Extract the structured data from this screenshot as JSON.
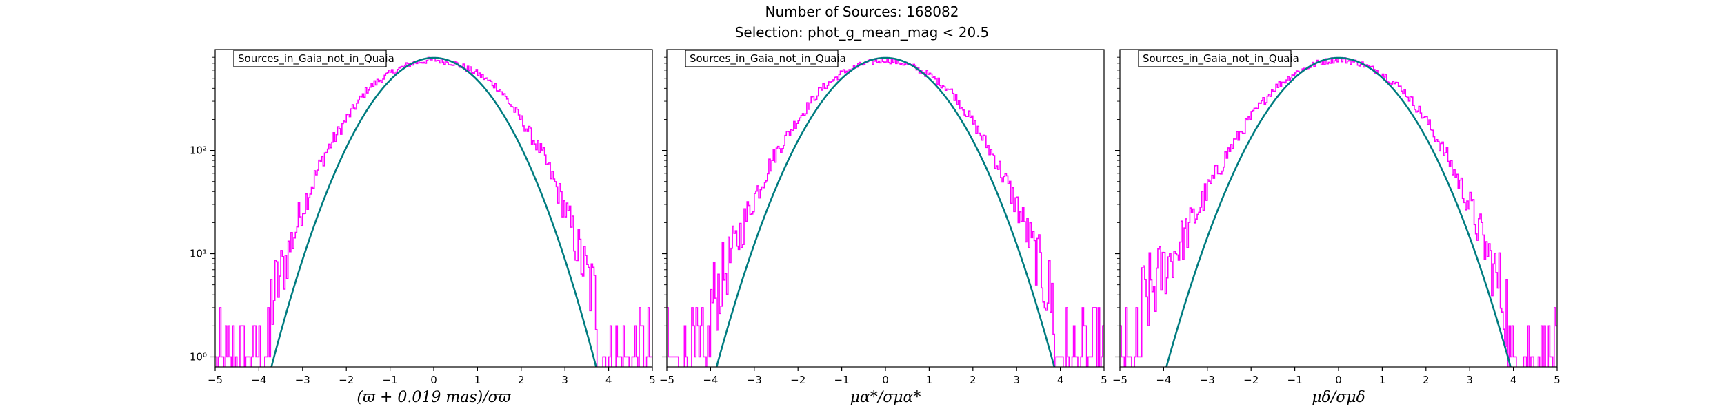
{
  "figure": {
    "title_line1": "Number of Sources: 168082",
    "title_line2": "Selection: phot_g_mean_mag < 20.5",
    "colors": {
      "histogram": "#ff00ff",
      "fit_curve": "#007c80"
    }
  },
  "chart_data": [
    {
      "type": "histogram",
      "legend": "Sources_in_Gaia_not_in_Quaia",
      "legend_position": "top-left",
      "xlabel": "(ϖ + 0.019 mas)/σϖ",
      "ylabel": "",
      "xlim": [
        -5,
        5
      ],
      "ylim": [
        0.8,
        950
      ],
      "yscale": "log",
      "xticks": [
        "−5",
        "−4",
        "−3",
        "−2",
        "−1",
        "0",
        "1",
        "2",
        "3",
        "4",
        "5"
      ],
      "yticks": [
        {
          "value": 1,
          "label": "10⁰"
        },
        {
          "value": 10,
          "label": "10¹"
        },
        {
          "value": 100,
          "label": "10²"
        }
      ],
      "series": [
        {
          "kind": "step",
          "x": [
            -5,
            -4.5,
            -4,
            -3.5,
            -3,
            -2.5,
            -2,
            -1.5,
            -1,
            -0.5,
            0,
            0.5,
            1,
            1.5,
            2,
            2.5,
            3,
            3.5,
            4,
            4.5,
            5
          ],
          "y": [
            1,
            1,
            1.5,
            6,
            28,
            90,
            200,
            400,
            560,
            700,
            760,
            700,
            560,
            400,
            200,
            90,
            28,
            6,
            1.5,
            1,
            1
          ]
        },
        {
          "kind": "gaussian",
          "amplitude": 790,
          "sigma": 1.0,
          "x_range": [
            -4.1,
            4.1
          ]
        }
      ]
    },
    {
      "type": "histogram",
      "legend": "Sources_in_Gaia_not_in_Quaia",
      "legend_position": "top-left",
      "xlabel": "μα*/σμα*",
      "ylabel": "",
      "xlim": [
        -5,
        5
      ],
      "ylim": [
        0.8,
        950
      ],
      "yscale": "log",
      "xticks": [
        "−5",
        "−4",
        "−3",
        "−2",
        "−1",
        "0",
        "1",
        "2",
        "3",
        "4",
        "5"
      ],
      "yticks": [
        {
          "value": 1,
          "label": ""
        },
        {
          "value": 10,
          "label": ""
        },
        {
          "value": 100,
          "label": ""
        }
      ],
      "series": [
        {
          "kind": "step",
          "x": [
            -5,
            -4.5,
            -4,
            -3.5,
            -3,
            -2.5,
            -2,
            -1.5,
            -1,
            -0.5,
            0,
            0.5,
            1,
            1.5,
            2,
            2.5,
            3,
            3.5,
            4,
            4.5,
            5
          ],
          "y": [
            1,
            1.5,
            3,
            10,
            35,
            95,
            200,
            380,
            560,
            690,
            760,
            690,
            540,
            380,
            190,
            85,
            30,
            8,
            2,
            1,
            1
          ]
        },
        {
          "kind": "gaussian",
          "amplitude": 790,
          "sigma": 1.04,
          "x_range": [
            -4.3,
            4.3
          ]
        }
      ]
    },
    {
      "type": "histogram",
      "legend": "Sources_in_Gaia_not_in_Quaia",
      "legend_position": "top-left",
      "xlabel": "μδ/σμδ",
      "ylabel": "",
      "xlim": [
        -5,
        5
      ],
      "ylim": [
        0.8,
        950
      ],
      "yscale": "log",
      "xticks": [
        "−5",
        "−4",
        "−3",
        "−2",
        "−1",
        "0",
        "1",
        "2",
        "3",
        "4",
        "5"
      ],
      "yticks": [
        {
          "value": 1,
          "label": ""
        },
        {
          "value": 10,
          "label": ""
        },
        {
          "value": 100,
          "label": ""
        }
      ],
      "series": [
        {
          "kind": "step",
          "x": [
            -5,
            -4.5,
            -4,
            -3.5,
            -3,
            -2.5,
            -2,
            -1.5,
            -1,
            -0.5,
            0,
            0.5,
            1,
            1.5,
            2,
            2.5,
            3,
            3.5,
            4,
            4.5,
            5
          ],
          "y": [
            1.5,
            3,
            7,
            15,
            40,
            100,
            210,
            390,
            560,
            700,
            770,
            700,
            560,
            380,
            200,
            85,
            30,
            8,
            2,
            1,
            1
          ]
        },
        {
          "kind": "gaussian",
          "amplitude": 790,
          "sigma": 1.06,
          "x_range": [
            -4.4,
            4.4
          ]
        }
      ]
    }
  ]
}
